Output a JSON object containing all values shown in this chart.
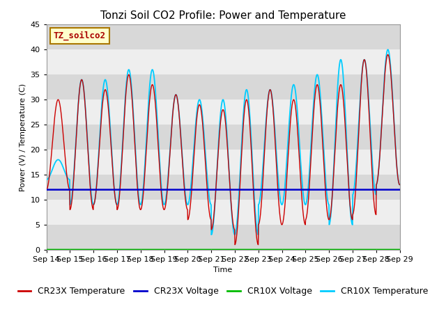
{
  "title": "Tonzi Soil CO2 Profile: Power and Temperature",
  "xlabel": "Time",
  "ylabel": "Power (V) / Temperature (C)",
  "xlim": [
    0,
    15
  ],
  "ylim": [
    0,
    45
  ],
  "yticks": [
    0,
    5,
    10,
    15,
    20,
    25,
    30,
    35,
    40,
    45
  ],
  "xtick_labels": [
    "Sep 14",
    "Sep 15",
    "Sep 16",
    "Sep 17",
    "Sep 18",
    "Sep 19",
    "Sep 20",
    "Sep 21",
    "Sep 22",
    "Sep 23",
    "Sep 24",
    "Sep 25",
    "Sep 26",
    "Sep 27",
    "Sep 28",
    "Sep 29"
  ],
  "annotation_text": "TZ_soilco2",
  "annotation_bg": "#ffffcc",
  "annotation_border": "#aa7700",
  "cr23x_temp_color": "#cc0000",
  "cr23x_volt_color": "#0000cc",
  "cr10x_volt_color": "#00bb00",
  "cr10x_temp_color": "#00ccff",
  "cr23x_volt_value": 12.0,
  "background_color": "#ffffff",
  "plot_bg": "#ffffff",
  "band_color_dark": "#d8d8d8",
  "band_color_light": "#eeeeee",
  "title_fontsize": 11,
  "label_fontsize": 8,
  "tick_fontsize": 8,
  "legend_fontsize": 9,
  "cr23x_peaks": [
    30,
    34,
    32,
    35,
    33,
    31,
    29,
    28,
    30,
    32,
    30,
    33,
    33,
    38,
    39
  ],
  "cr23x_mins": [
    12,
    8,
    9,
    8,
    8,
    8,
    6,
    4,
    1,
    5,
    5,
    6,
    6,
    7,
    13
  ],
  "cr10x_peaks": [
    18,
    34,
    34,
    36,
    36,
    31,
    30,
    30,
    32,
    32,
    33,
    35,
    38,
    38,
    40
  ],
  "cr10x_mins": [
    14,
    9,
    9,
    9,
    9,
    9,
    9,
    3,
    3,
    9,
    9,
    9,
    5,
    11,
    13
  ]
}
